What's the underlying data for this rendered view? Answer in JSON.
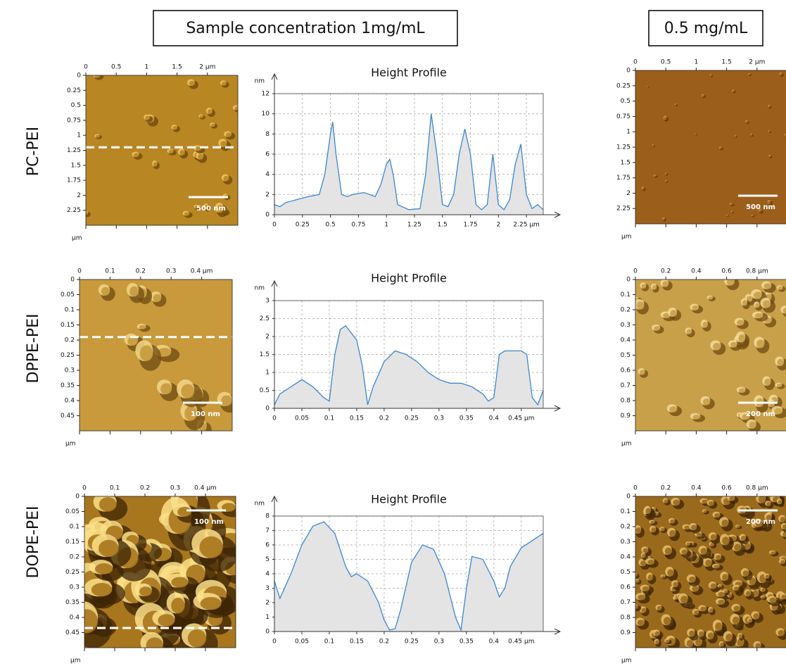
{
  "headers": {
    "left": "Sample concentration 1mg/mL",
    "right": "0.5 mg/mL"
  },
  "rows": [
    {
      "label": "PC-PEI",
      "images": [
        {
          "xlim": [
            0,
            2.5
          ],
          "ylim": [
            0,
            2.5
          ],
          "xticks": [
            0,
            0.5,
            1,
            1.5,
            {
              "value": 2,
              "label": "2 µm"
            }
          ],
          "yticks": [
            0,
            0.25,
            0.5,
            0.75,
            1,
            1.25,
            1.5,
            1.75,
            2,
            2.25
          ],
          "unit": "µm",
          "scale_bar": "500 nm"
        },
        {
          "xlim": [
            0,
            2.5
          ],
          "ylim": [
            0,
            2.5
          ],
          "xticks": [
            0,
            0.5,
            1,
            1.5,
            {
              "value": 2,
              "label": "2 µm"
            }
          ],
          "yticks": [
            0,
            0.25,
            0.5,
            0.75,
            1,
            1.25,
            1.5,
            1.75,
            2,
            2.25
          ],
          "unit": "µm",
          "scale_bar": "500 nm"
        }
      ]
    },
    {
      "label": "DPPE-PEI",
      "images": [
        {
          "xlim": [
            0,
            0.5
          ],
          "ylim": [
            0,
            0.5
          ],
          "xticks": [
            0,
            0.1,
            0.2,
            0.3,
            {
              "value": 0.4,
              "label": "0.4 µm"
            }
          ],
          "yticks": [
            0,
            0.05,
            0.1,
            0.15,
            0.2,
            0.25,
            0.3,
            0.35,
            0.4,
            0.45
          ],
          "unit": "µm",
          "scale_bar": "100 nm"
        },
        {
          "xlim": [
            0,
            1
          ],
          "ylim": [
            0,
            1
          ],
          "xticks": [
            0,
            0.2,
            0.4,
            0.6,
            {
              "value": 0.8,
              "label": "0.8 µm"
            }
          ],
          "yticks": [
            0,
            0.1,
            0.2,
            0.3,
            0.4,
            0.5,
            0.6,
            0.7,
            0.8,
            0.9
          ],
          "unit": "µm",
          "scale_bar": "200 nm"
        }
      ]
    },
    {
      "label": "DOPE-PEI",
      "images": [
        {
          "xlim": [
            0,
            0.5
          ],
          "ylim": [
            0,
            0.5
          ],
          "xticks": [
            0,
            0.1,
            0.2,
            0.3,
            {
              "value": 0.4,
              "label": "0.4 µm"
            }
          ],
          "yticks": [
            0,
            0.05,
            0.1,
            0.15,
            0.2,
            0.25,
            0.3,
            0.35,
            0.4,
            0.45
          ],
          "unit": "µm",
          "scale_bar": "100 nm"
        },
        {
          "xlim": [
            0,
            1
          ],
          "ylim": [
            0,
            1
          ],
          "xticks": [
            0,
            0.2,
            0.4,
            0.6,
            {
              "value": 0.8,
              "label": "0.8 µm"
            }
          ],
          "yticks": [
            0,
            0.1,
            0.2,
            0.3,
            0.4,
            0.5,
            0.6,
            0.7,
            0.8,
            0.9
          ],
          "unit": "µm",
          "scale_bar": "200 nm"
        }
      ]
    }
  ],
  "chart_data": [
    {
      "type": "line",
      "title": "Height Profile",
      "y_label": "nm",
      "color": "#3a87d0",
      "fill": "#e4e4e4",
      "grid": true,
      "x": [
        0,
        0.05,
        0.1,
        0.2,
        0.3,
        0.4,
        0.45,
        0.5,
        0.52,
        0.55,
        0.6,
        0.65,
        0.7,
        0.8,
        0.9,
        0.95,
        1.0,
        1.03,
        1.06,
        1.1,
        1.2,
        1.3,
        1.35,
        1.4,
        1.45,
        1.5,
        1.55,
        1.6,
        1.65,
        1.7,
        1.75,
        1.8,
        1.85,
        1.9,
        1.95,
        2.0,
        2.05,
        2.1,
        2.15,
        2.2,
        2.25,
        2.3,
        2.35,
        2.4
      ],
      "values": [
        1,
        0.8,
        1.2,
        1.5,
        1.8,
        2,
        4,
        8,
        9.2,
        6,
        2,
        1.8,
        2,
        2.2,
        1.8,
        3,
        5,
        5.5,
        4,
        1,
        0.5,
        0.6,
        4,
        10,
        6,
        1,
        0.8,
        2,
        6,
        8.5,
        6,
        1,
        0.5,
        1,
        6,
        1,
        0.5,
        1.5,
        5,
        7,
        2,
        0.6,
        1,
        0.5
      ],
      "xlim": [
        0,
        2.4
      ],
      "ylim": [
        0,
        12
      ],
      "xticks": [
        0,
        0.25,
        0.5,
        0.75,
        1,
        1.25,
        1.5,
        1.75,
        2,
        {
          "value": 2.25,
          "label": "2.25 µm"
        }
      ],
      "yticks": [
        0,
        2,
        4,
        6,
        8,
        10,
        12
      ]
    },
    {
      "type": "line",
      "title": "Height Profile",
      "y_label": "nm",
      "color": "#3a87d0",
      "fill": "#e4e4e4",
      "grid": true,
      "x": [
        0,
        0.01,
        0.03,
        0.05,
        0.07,
        0.09,
        0.1,
        0.11,
        0.12,
        0.13,
        0.14,
        0.15,
        0.16,
        0.17,
        0.18,
        0.2,
        0.22,
        0.24,
        0.26,
        0.28,
        0.3,
        0.32,
        0.34,
        0.36,
        0.38,
        0.39,
        0.4,
        0.41,
        0.42,
        0.44,
        0.45,
        0.46,
        0.47,
        0.48,
        0.49
      ],
      "values": [
        0.1,
        0.4,
        0.6,
        0.8,
        0.6,
        0.3,
        0.2,
        1.5,
        2.2,
        2.3,
        2.1,
        1.9,
        1.2,
        0.1,
        0.6,
        1.3,
        1.6,
        1.5,
        1.3,
        1.0,
        0.8,
        0.7,
        0.7,
        0.6,
        0.4,
        0.2,
        0.3,
        1.5,
        1.6,
        1.6,
        1.6,
        1.5,
        0.3,
        0.1,
        0.5
      ],
      "xlim": [
        0,
        0.49
      ],
      "ylim": [
        0,
        3
      ],
      "xticks": [
        0,
        0.05,
        0.1,
        0.15,
        0.2,
        0.25,
        0.3,
        0.35,
        0.4,
        {
          "value": 0.45,
          "label": "0.45 µm"
        }
      ],
      "yticks": [
        0,
        0.5,
        1,
        1.5,
        2,
        2.5,
        3
      ]
    },
    {
      "type": "line",
      "title": "Height Profile",
      "y_label": "nm",
      "color": "#3a87d0",
      "fill": "#e4e4e4",
      "grid": true,
      "x": [
        0,
        0.01,
        0.03,
        0.05,
        0.07,
        0.09,
        0.11,
        0.13,
        0.14,
        0.15,
        0.17,
        0.19,
        0.2,
        0.21,
        0.22,
        0.23,
        0.25,
        0.27,
        0.29,
        0.31,
        0.33,
        0.34,
        0.35,
        0.36,
        0.38,
        0.4,
        0.41,
        0.42,
        0.43,
        0.45,
        0.47,
        0.49
      ],
      "values": [
        3.5,
        2.3,
        4,
        6,
        7.3,
        7.6,
        6.8,
        4.5,
        3.8,
        4,
        3.5,
        2,
        0.8,
        0.1,
        0.2,
        1.5,
        4.8,
        6,
        5.7,
        4,
        1,
        0.1,
        3,
        5.2,
        5,
        3.5,
        2.4,
        3,
        4.5,
        5.8,
        6.3,
        6.8
      ],
      "xlim": [
        0,
        0.49
      ],
      "ylim": [
        0,
        8
      ],
      "xticks": [
        0,
        0.05,
        0.1,
        0.15,
        0.2,
        0.25,
        0.3,
        0.35,
        0.4,
        {
          "value": 0.45,
          "label": "0.45 µm"
        }
      ],
      "yticks": [
        0,
        1,
        2,
        3,
        4,
        5,
        6,
        7,
        8
      ]
    }
  ]
}
